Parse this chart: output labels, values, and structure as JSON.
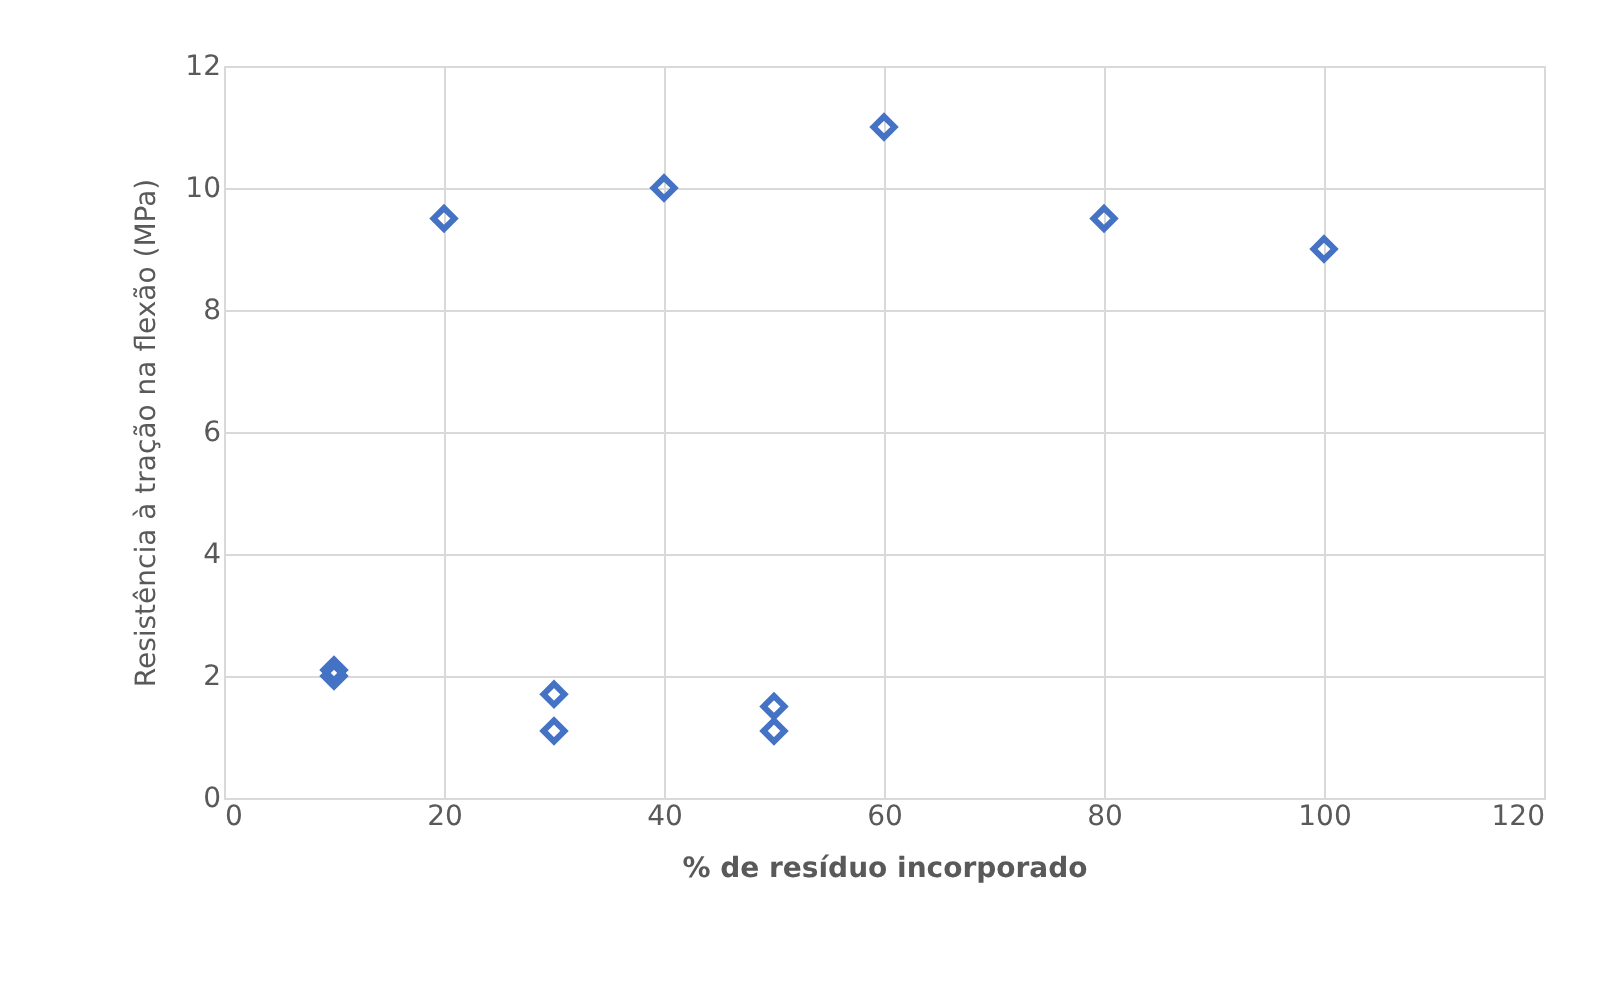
{
  "chart_data": {
    "type": "scatter",
    "xlabel": "% de resíduo incorporado",
    "ylabel": "Resistência à tração na flexão (MPa)",
    "series": [
      {
        "color": "#4472c4",
        "x": [
          10,
          10,
          20,
          30,
          30,
          40,
          50,
          50,
          60,
          80,
          100
        ],
        "values": [
          2.1,
          2.0,
          9.5,
          1.7,
          1.1,
          10.0,
          1.5,
          1.1,
          11.0,
          9.5,
          9.0
        ]
      }
    ],
    "xlim": [
      0,
      120
    ],
    "xticks": [
      0,
      20,
      40,
      60,
      80,
      100,
      120
    ],
    "ylim": [
      0,
      12
    ],
    "yticks": [
      0,
      2,
      4,
      6,
      8,
      10,
      12
    ],
    "grid": true,
    "marker": "diamond"
  }
}
